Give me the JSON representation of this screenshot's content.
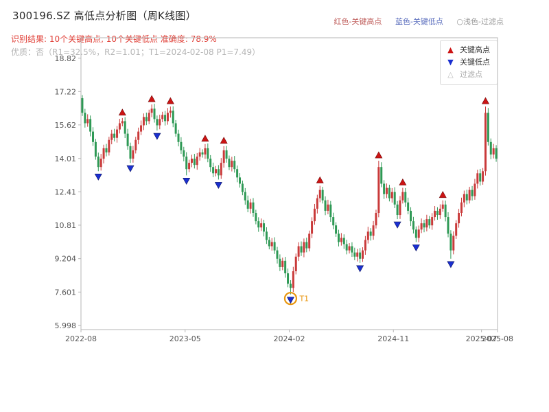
{
  "header": {
    "title": "300196.SZ 高低点分析图（周K线图）",
    "legend_top": {
      "high": {
        "text": "红色-关键高点",
        "color": "#c0605e"
      },
      "low": {
        "text": "蓝色-关键低点",
        "color": "#5c6fbe"
      },
      "filter": {
        "text": "○浅色-过滤点",
        "color": "#9a9a9a"
      }
    },
    "result_line": "识别结果: 10个关键高点, 10个关键低点  准确度: 78.9%",
    "result_color": "#e04038",
    "quality_line": "优质：否（R1=32.5%，R2=1.01；T1=2024-02-08 P1=7.49）"
  },
  "legend_box": {
    "items": [
      {
        "label": "关键高点",
        "marker": "up-triangle",
        "color": "#cc1414",
        "label_color": "#333333"
      },
      {
        "label": "关键低点",
        "marker": "down-triangle",
        "color": "#1a2fd0",
        "label_color": "#333333"
      },
      {
        "label": "过滤点",
        "marker": "hollow-triangle",
        "color": "#b9b9b9",
        "label_color": "#aaaaaa"
      }
    ]
  },
  "colors": {
    "up": "#c93a3a",
    "down": "#2e9955",
    "key_high": "#cc1414",
    "key_low": "#1a2fd0",
    "t1": "#e8960f",
    "axis": "#b5b5b5"
  },
  "chart_data": {
    "type": "candlestick",
    "title": "300196.SZ 高低点分析图（周K线图）",
    "symbol": "300196.SZ",
    "freq": "weekly",
    "xlabel": "",
    "ylabel": "",
    "legend_position": "upper right",
    "grid": false,
    "ylim": [
      5.8,
      19.8
    ],
    "yticks": [
      {
        "label": "18.82",
        "value": 18.82
      },
      {
        "label": "17.22",
        "value": 17.22
      },
      {
        "label": "15.62",
        "value": 15.62
      },
      {
        "label": "14.01",
        "value": 14.01
      },
      {
        "label": "12.41",
        "value": 12.41
      },
      {
        "label": "10.81",
        "value": 10.81
      },
      {
        "label": "9.204",
        "value": 9.204
      },
      {
        "label": "7.601",
        "value": 7.601
      },
      {
        "label": "5.998",
        "value": 5.998
      }
    ],
    "xticks": [
      {
        "label": "2022-08",
        "week": 0
      },
      {
        "label": "2023-05",
        "week": 39
      },
      {
        "label": "2024-02",
        "week": 78
      },
      {
        "label": "2024-11",
        "week": 117
      },
      {
        "label": "2025-07",
        "week": 150
      },
      {
        "label": "2025-08",
        "week": 156
      }
    ],
    "open_first": 16.9,
    "wick": 0.15,
    "closes": [
      16.2,
      15.7,
      15.9,
      15.3,
      14.8,
      14.1,
      13.6,
      14.0,
      14.5,
      14.3,
      14.9,
      15.2,
      15.0,
      15.4,
      15.7,
      15.8,
      15.2,
      14.6,
      14.0,
      14.4,
      14.9,
      15.3,
      15.6,
      16.0,
      15.8,
      16.2,
      16.4,
      15.9,
      15.6,
      15.9,
      16.1,
      15.8,
      16.2,
      16.3,
      15.7,
      15.2,
      14.8,
      14.4,
      14.1,
      13.5,
      13.8,
      14.0,
      13.7,
      14.1,
      14.3,
      14.2,
      14.5,
      14.0,
      13.6,
      13.3,
      13.5,
      13.2,
      13.8,
      14.4,
      14.0,
      13.6,
      13.9,
      13.5,
      13.1,
      12.8,
      12.4,
      12.0,
      11.6,
      11.9,
      11.4,
      11.0,
      10.7,
      10.9,
      10.5,
      10.1,
      9.8,
      10.0,
      9.6,
      9.2,
      8.8,
      9.1,
      8.5,
      8.0,
      7.8,
      8.6,
      9.3,
      9.8,
      9.5,
      10.0,
      9.7,
      10.4,
      11.0,
      11.6,
      12.1,
      12.5,
      12.0,
      11.5,
      11.8,
      11.2,
      10.8,
      10.4,
      10.0,
      10.2,
      9.9,
      9.6,
      9.8,
      9.5,
      9.3,
      9.5,
      9.2,
      9.6,
      10.1,
      10.5,
      10.3,
      10.8,
      11.4,
      13.6,
      12.8,
      12.3,
      12.6,
      12.1,
      12.4,
      11.8,
      11.3,
      12.0,
      12.4,
      11.9,
      11.5,
      11.0,
      10.6,
      10.2,
      10.6,
      10.9,
      10.7,
      11.1,
      10.8,
      11.2,
      11.5,
      11.3,
      11.6,
      11.8,
      11.2,
      10.4,
      9.6,
      10.3,
      10.9,
      11.4,
      11.9,
      12.3,
      12.0,
      12.5,
      12.2,
      12.8,
      13.3,
      12.9,
      13.4,
      16.2,
      14.8,
      14.2,
      14.5,
      14.0
    ],
    "key_highs": [
      {
        "week": 15,
        "price": 15.95
      },
      {
        "week": 26,
        "price": 16.6
      },
      {
        "week": 33,
        "price": 16.5
      },
      {
        "week": 46,
        "price": 14.7
      },
      {
        "week": 53,
        "price": 14.6
      },
      {
        "week": 89,
        "price": 12.7
      },
      {
        "week": 111,
        "price": 13.9
      },
      {
        "week": 120,
        "price": 12.6
      },
      {
        "week": 135,
        "price": 12.0
      },
      {
        "week": 151,
        "price": 16.5
      }
    ],
    "key_lows": [
      {
        "week": 6,
        "price": 13.4
      },
      {
        "week": 18,
        "price": 13.8
      },
      {
        "week": 28,
        "price": 15.35
      },
      {
        "week": 39,
        "price": 13.2
      },
      {
        "week": 51,
        "price": 13.0
      },
      {
        "week": 78,
        "price": 7.49
      },
      {
        "week": 104,
        "price": 9.0
      },
      {
        "week": 118,
        "price": 11.1
      },
      {
        "week": 125,
        "price": 10.0
      },
      {
        "week": 138,
        "price": 9.2
      }
    ],
    "filter_points": [],
    "t1": {
      "week": 78,
      "price": 7.49,
      "label": "T1",
      "date": "2024-02-08"
    }
  }
}
